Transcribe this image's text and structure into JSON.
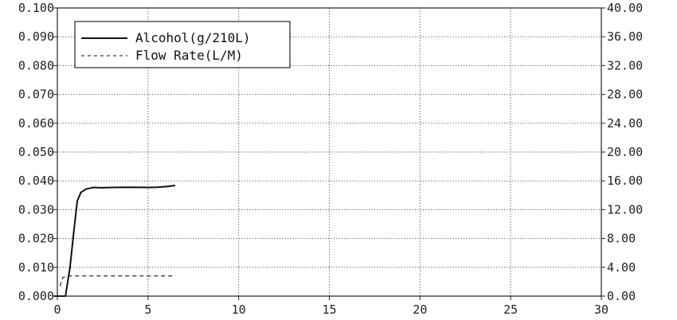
{
  "chart_data": {
    "type": "line",
    "title": "",
    "xlabel": "",
    "ylabel": "",
    "y2label": "",
    "xlim": [
      0,
      30
    ],
    "ylim": [
      0,
      0.1
    ],
    "y2lim": [
      0,
      40
    ],
    "grid": true,
    "legend_position": "top-left",
    "x_ticks": [
      "0",
      "5",
      "10",
      "15",
      "20",
      "25",
      "30"
    ],
    "y_ticks": [
      "0.000",
      "0.010",
      "0.020",
      "0.030",
      "0.040",
      "0.050",
      "0.060",
      "0.070",
      "0.080",
      "0.090",
      "0.100"
    ],
    "y2_ticks": [
      "0.00",
      "4.00",
      "8.00",
      "12.00",
      "16.00",
      "20.00",
      "24.00",
      "28.00",
      "32.00",
      "36.00",
      "40.00"
    ],
    "series": [
      {
        "name": "Alcohol(g/210L)",
        "axis": "left",
        "style": "solid",
        "color": "#111111",
        "points": [
          [
            -0.5,
            0.0
          ],
          [
            0.45,
            0.0
          ],
          [
            0.7,
            0.01
          ],
          [
            0.9,
            0.022
          ],
          [
            1.1,
            0.033
          ],
          [
            1.3,
            0.036
          ],
          [
            1.6,
            0.0372
          ],
          [
            2.0,
            0.0377
          ],
          [
            2.5,
            0.0376
          ],
          [
            3.0,
            0.0377
          ],
          [
            4.0,
            0.0378
          ],
          [
            5.0,
            0.0377
          ],
          [
            5.5,
            0.0378
          ],
          [
            6.0,
            0.038
          ],
          [
            6.5,
            0.0384
          ]
        ]
      },
      {
        "name": "Flow Rate(L/M)",
        "axis": "right",
        "style": "dashed",
        "color": "#111111",
        "points": [
          [
            0.15,
            1.4
          ],
          [
            0.3,
            2.6
          ],
          [
            0.6,
            2.8
          ],
          [
            6.5,
            2.8
          ]
        ]
      }
    ]
  }
}
